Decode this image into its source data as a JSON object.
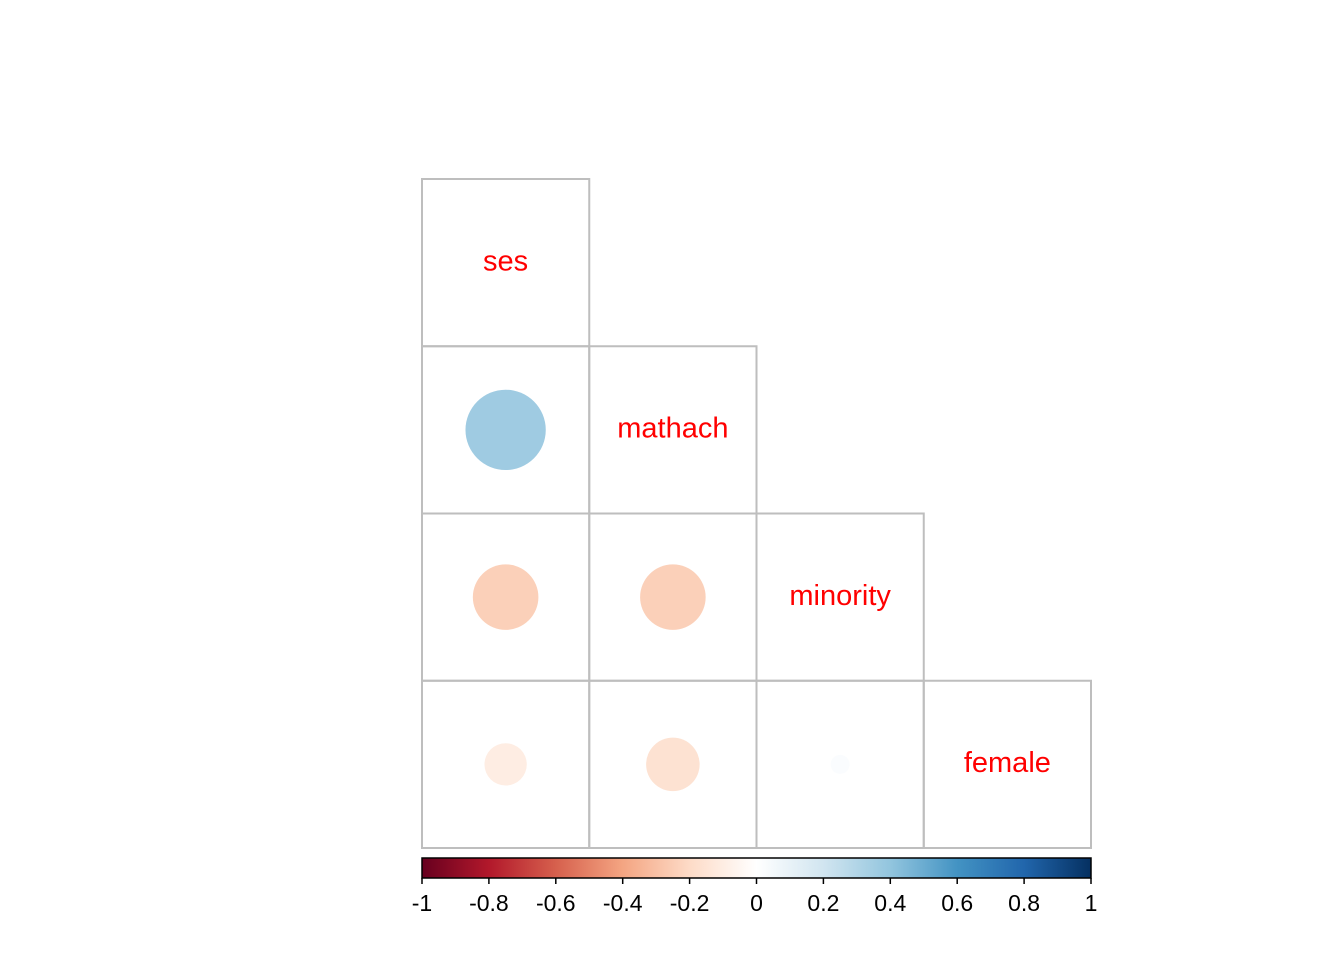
{
  "chart_data": {
    "type": "heatmap",
    "method": "circle",
    "layout": "lower-triangle",
    "variables": [
      "ses",
      "mathach",
      "minority",
      "female"
    ],
    "correlations": [
      [
        1.0,
        0.36,
        -0.24,
        -0.1
      ],
      [
        0.36,
        1.0,
        -0.24,
        -0.16
      ],
      [
        -0.24,
        -0.24,
        1.0,
        0.02
      ],
      [
        -0.1,
        -0.16,
        0.02,
        1.0
      ]
    ],
    "diagonal_labels_color": "#ff0000",
    "colorbar": {
      "orientation": "horizontal",
      "placement": "bottom",
      "range": [
        -1,
        1
      ],
      "ticks": [
        -1,
        -0.8,
        -0.6,
        -0.4,
        -0.2,
        0,
        0.2,
        0.4,
        0.6,
        0.8,
        1
      ],
      "tick_labels": [
        "-1",
        "-0.8",
        "-0.6",
        "-0.4",
        "-0.2",
        "0",
        "0.2",
        "0.4",
        "0.6",
        "0.8",
        "1"
      ],
      "colors": [
        "#67001f",
        "#b2182b",
        "#d6604d",
        "#f4a582",
        "#fddbc7",
        "#ffffff",
        "#d1e5f0",
        "#92c5de",
        "#4393c3",
        "#2166ac",
        "#053061"
      ]
    },
    "grid_color": "#bebebe"
  }
}
